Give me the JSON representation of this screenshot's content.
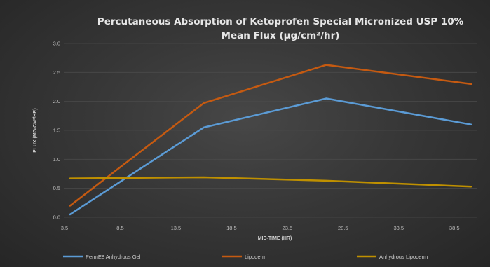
{
  "chart_data": {
    "type": "line",
    "title_line1": "Percutaneous Absorption of Ketoprofen Special Micronized USP 10%",
    "title_line2": "Mean Flux (μg/cm²/hr)",
    "xlabel": "MID-TIME (HR)",
    "ylabel": "FLUX (MG/CM²/HR)",
    "x_ticks": [
      "3.5",
      "8.5",
      "13.5",
      "18.5",
      "23.5",
      "28.5",
      "33.5",
      "38.5"
    ],
    "y_ticks": [
      "0.0",
      "0.5",
      "1.0",
      "1.5",
      "2.0",
      "2.5",
      "3.0"
    ],
    "xlim": [
      3.5,
      40.5
    ],
    "ylim": [
      0,
      3.0
    ],
    "grid": "horizontal",
    "legend_position": "bottom",
    "series": [
      {
        "name": "PermE8 Anhydrous Gel",
        "color": "#5b9bd5",
        "x": [
          4,
          16,
          27,
          40
        ],
        "y": [
          0.05,
          1.55,
          2.05,
          1.6
        ]
      },
      {
        "name": "Lipoderm",
        "color": "#c55a11",
        "x": [
          4,
          16,
          27,
          40
        ],
        "y": [
          0.2,
          1.97,
          2.63,
          2.3
        ]
      },
      {
        "name": "Anhydrous Lipoderm",
        "color": "#bf9000",
        "x": [
          4,
          16,
          27,
          40
        ],
        "y": [
          0.67,
          0.69,
          0.63,
          0.53
        ]
      }
    ]
  }
}
